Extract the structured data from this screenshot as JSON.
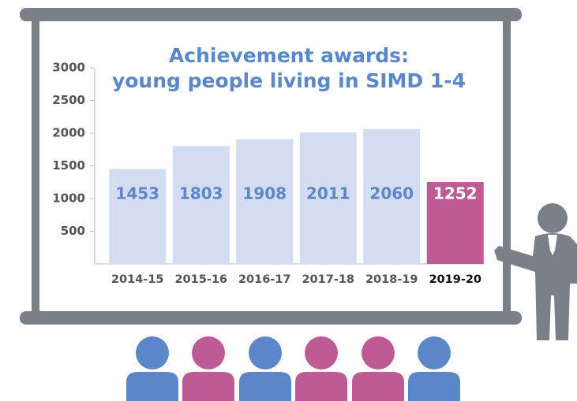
{
  "chart_data": {
    "type": "bar",
    "title": [
      "Achievement awards:",
      "young people living in SIMD 1-4"
    ],
    "categories": [
      "2014-15",
      "2015-16",
      "2016-17",
      "2017-18",
      "2018-19",
      "2019-20"
    ],
    "values": [
      1453,
      1803,
      1908,
      2011,
      2060,
      1252
    ],
    "colors": [
      "#d3dcf0",
      "#d3dcf0",
      "#d3dcf0",
      "#d3dcf0",
      "#d3dcf0",
      "#be5b95"
    ],
    "value_label_colors": [
      "#5b87c8",
      "#5b87c8",
      "#5b87c8",
      "#5b87c8",
      "#5b87c8",
      "#ffffff"
    ],
    "category_label_colors": [
      "#555555",
      "#555555",
      "#555555",
      "#555555",
      "#555555",
      "#111111"
    ],
    "ylim": [
      0,
      3000
    ],
    "yticks": [
      500,
      1000,
      1500,
      2000,
      2500,
      3000
    ],
    "grid": false
  }
}
